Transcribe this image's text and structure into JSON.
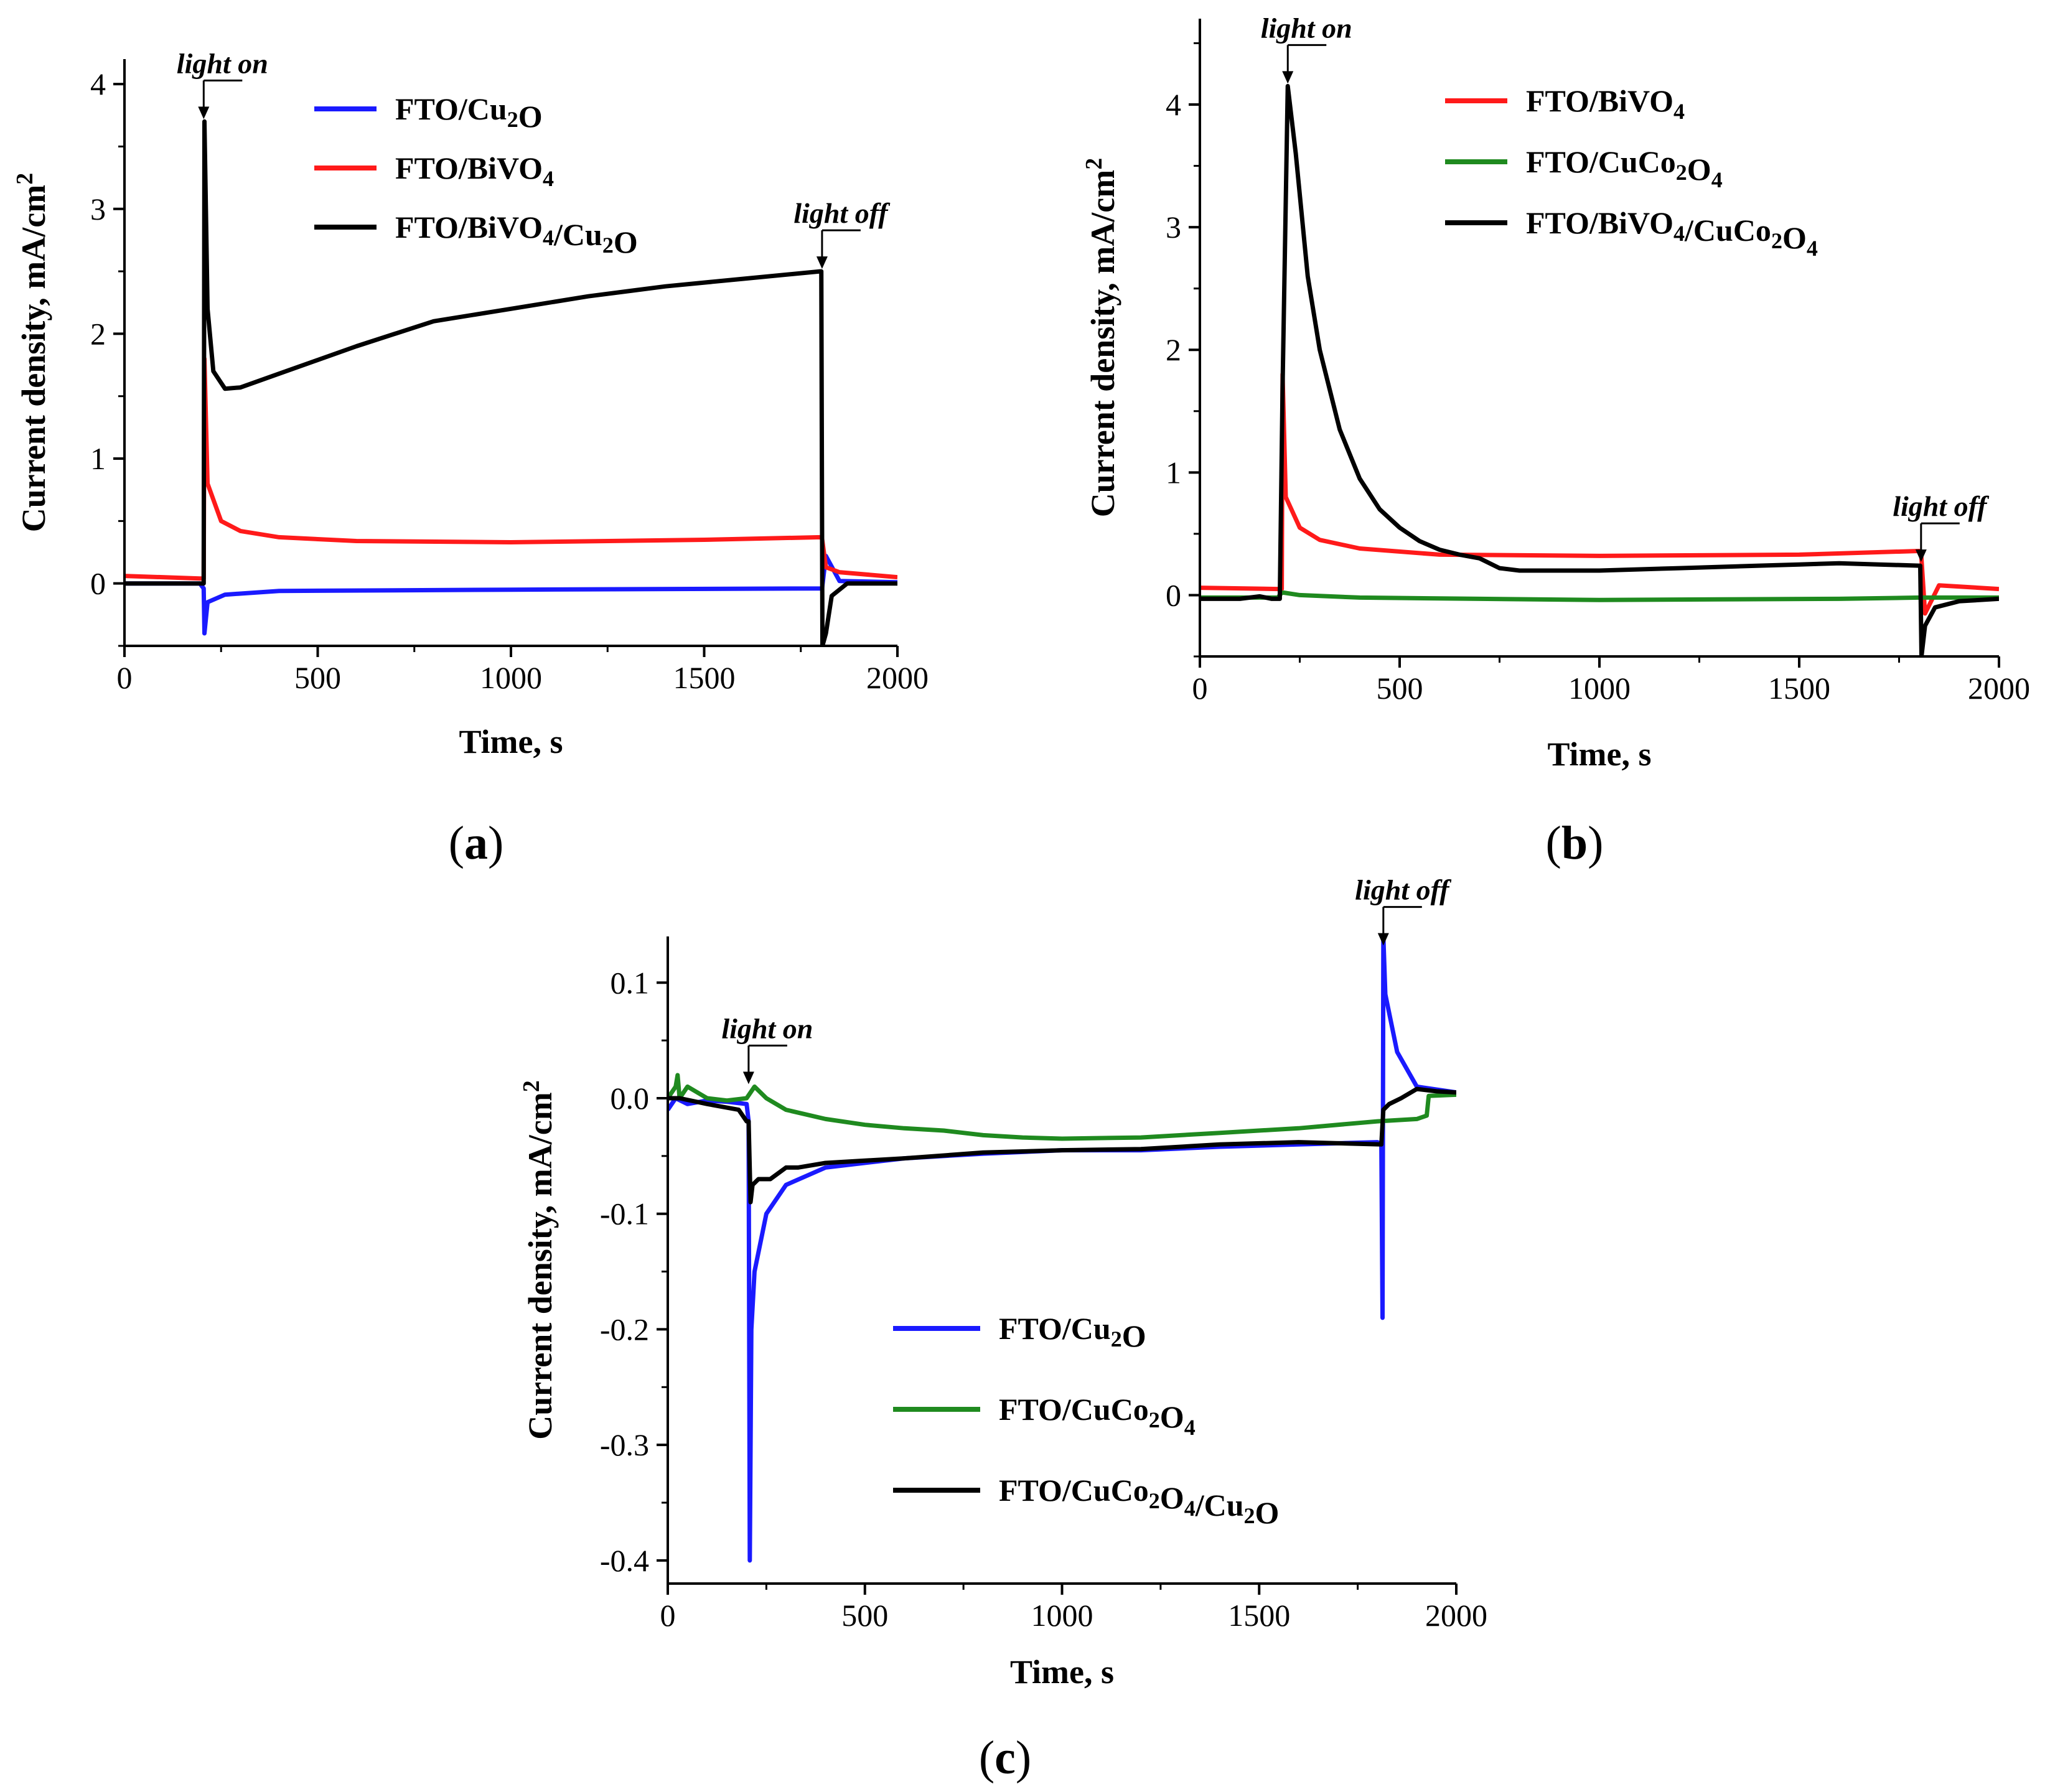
{
  "chart_data": [
    {
      "panel": "(a)",
      "panel_letter": "a",
      "type": "line",
      "xlabel": "Time, s",
      "ylabel": "Current density, mA/cm2",
      "ylabel_parts": {
        "base": "Current density, mA/cm",
        "sup": "2"
      },
      "xlim": [
        0,
        2000
      ],
      "ylim": [
        -0.5,
        4.2
      ],
      "x_ticks": [
        0,
        500,
        1000,
        1500,
        2000
      ],
      "x_tick_labels": [
        "0",
        "500",
        "1000",
        "1500",
        "2000"
      ],
      "y_ticks": [
        0,
        1,
        2,
        3,
        4
      ],
      "y_tick_labels": [
        "0",
        "1",
        "2",
        "3",
        "4"
      ],
      "legend_position": "top-right",
      "annotations": [
        {
          "text": "light on",
          "x": 205,
          "y": 3.7
        },
        {
          "text": "light off",
          "x": 1805,
          "y": 2.5
        }
      ],
      "series": [
        {
          "name": "FTO/Cu2O",
          "label_parts": [
            [
              "FTO/Cu",
              "n"
            ],
            [
              "2",
              "sub"
            ],
            [
              "O",
              "n"
            ]
          ],
          "color": "#1a1aff",
          "x": [
            0,
            195,
            205,
            207,
            215,
            260,
            400,
            1000,
            1800,
            1805,
            1815,
            1850,
            2000
          ],
          "y": [
            0.0,
            0.0,
            -0.04,
            -0.4,
            -0.15,
            -0.09,
            -0.06,
            -0.05,
            -0.04,
            -0.04,
            0.22,
            0.02,
            0.01
          ]
        },
        {
          "name": "FTO/BiVO4",
          "label_parts": [
            [
              "FTO/BiVO",
              "n"
            ],
            [
              "4",
              "sub"
            ]
          ],
          "color": "#ff1a1a",
          "x": [
            0,
            195,
            205,
            207,
            215,
            250,
            300,
            400,
            600,
            1000,
            1500,
            1800,
            1805,
            1815,
            1850,
            2000
          ],
          "y": [
            0.06,
            0.04,
            0.04,
            1.8,
            0.8,
            0.5,
            0.42,
            0.37,
            0.34,
            0.33,
            0.35,
            0.37,
            0.36,
            0.13,
            0.09,
            0.05
          ]
        },
        {
          "name": "FTO/BiVO4/Cu2O",
          "label_parts": [
            [
              "FTO/BiVO",
              "n"
            ],
            [
              "4",
              "sub"
            ],
            [
              "/Cu",
              "n"
            ],
            [
              "2",
              "sub"
            ],
            [
              "O",
              "n"
            ]
          ],
          "color": "#000000",
          "x": [
            0,
            195,
            205,
            207,
            215,
            230,
            260,
            300,
            400,
            600,
            800,
            1000,
            1200,
            1400,
            1600,
            1800,
            1803,
            1806,
            1815,
            1830,
            1870,
            2000
          ],
          "y": [
            0.0,
            0.0,
            0.0,
            3.7,
            2.2,
            1.7,
            1.56,
            1.57,
            1.68,
            1.9,
            2.1,
            2.2,
            2.3,
            2.38,
            2.44,
            2.5,
            2.5,
            -0.5,
            -0.4,
            -0.1,
            0.0,
            0.0
          ]
        }
      ]
    },
    {
      "panel": "(b)",
      "panel_letter": "b",
      "type": "line",
      "xlabel": "Time, s",
      "ylabel": "Current density, mA/cm2",
      "ylabel_parts": {
        "base": "Current density, mA/cm",
        "sup": "2"
      },
      "xlim": [
        0,
        2000
      ],
      "ylim": [
        -0.5,
        4.7
      ],
      "x_ticks": [
        0,
        500,
        1000,
        1500,
        2000
      ],
      "x_tick_labels": [
        "0",
        "500",
        "1000",
        "1500",
        "2000"
      ],
      "y_ticks": [
        0,
        1,
        2,
        3,
        4
      ],
      "y_tick_labels": [
        "0",
        "1",
        "2",
        "3",
        "4"
      ],
      "legend_position": "top-right",
      "annotations": [
        {
          "text": "light on",
          "x": 220,
          "y": 4.15
        },
        {
          "text": "light off",
          "x": 1805,
          "y": 0.25
        }
      ],
      "series": [
        {
          "name": "FTO/BiVO4",
          "label_parts": [
            [
              "FTO/BiVO",
              "n"
            ],
            [
              "4",
              "sub"
            ]
          ],
          "color": "#ff1a1a",
          "x": [
            0,
            195,
            205,
            207,
            215,
            250,
            300,
            400,
            600,
            1000,
            1500,
            1800,
            1805,
            1815,
            1850,
            2000
          ],
          "y": [
            0.06,
            0.05,
            0.05,
            1.8,
            0.8,
            0.55,
            0.45,
            0.38,
            0.33,
            0.32,
            0.33,
            0.36,
            0.35,
            -0.15,
            0.08,
            0.05
          ]
        },
        {
          "name": "FTO/CuCo2O4",
          "label_parts": [
            [
              "FTO/CuCo",
              "n"
            ],
            [
              "2",
              "sub"
            ],
            [
              "O",
              "n"
            ],
            [
              "4",
              "sub"
            ]
          ],
          "color": "#1f8a1f",
          "x": [
            0,
            195,
            205,
            210,
            250,
            400,
            700,
            1000,
            1300,
            1600,
            1800,
            1820,
            2000
          ],
          "y": [
            -0.02,
            -0.02,
            0.02,
            0.02,
            0.0,
            -0.02,
            -0.03,
            -0.04,
            -0.035,
            -0.03,
            -0.02,
            -0.02,
            -0.02
          ]
        },
        {
          "name": "FTO/BiVO4/CuCo2O4",
          "label_parts": [
            [
              "FTO/BiVO",
              "n"
            ],
            [
              "4",
              "sub"
            ],
            [
              "/CuCo",
              "n"
            ],
            [
              "2",
              "sub"
            ],
            [
              "O",
              "n"
            ],
            [
              "4",
              "sub"
            ]
          ],
          "color": "#000000",
          "x": [
            0,
            100,
            150,
            180,
            200,
            207,
            220,
            240,
            270,
            300,
            350,
            400,
            450,
            500,
            550,
            600,
            650,
            700,
            750,
            800,
            1000,
            1200,
            1400,
            1500,
            1600,
            1700,
            1800,
            1803,
            1806,
            1815,
            1840,
            1900,
            2000
          ],
          "y": [
            -0.03,
            -0.03,
            -0.01,
            -0.03,
            -0.03,
            1.7,
            4.15,
            3.6,
            2.6,
            2.0,
            1.35,
            0.95,
            0.7,
            0.55,
            0.44,
            0.37,
            0.33,
            0.3,
            0.22,
            0.2,
            0.2,
            0.22,
            0.24,
            0.25,
            0.26,
            0.25,
            0.24,
            0.24,
            -0.5,
            -0.25,
            -0.1,
            -0.05,
            -0.03
          ]
        }
      ]
    },
    {
      "panel": "(c)",
      "panel_letter": "c",
      "type": "line",
      "xlabel": "Time, s",
      "ylabel": "Current density, mA/cm2",
      "ylabel_parts": {
        "base": "Current density, mA/cm",
        "sup": "2"
      },
      "xlim": [
        0,
        2000
      ],
      "ylim": [
        -0.42,
        0.14
      ],
      "x_ticks": [
        0,
        500,
        1000,
        1500,
        2000
      ],
      "x_tick_labels": [
        "0",
        "500",
        "1000",
        "1500",
        "2000"
      ],
      "y_ticks": [
        0.1,
        0.0,
        -0.1,
        -0.2,
        -0.3,
        -0.4
      ],
      "y_tick_labels": [
        "0.1",
        "0.0",
        "-0.1",
        "-0.2",
        "-0.3",
        "-0.4"
      ],
      "legend_position": "bottom-center",
      "annotations": [
        {
          "text": "light on",
          "x": 205,
          "y": 0.01
        },
        {
          "text": "light off",
          "x": 1815,
          "y": 0.13
        }
      ],
      "series": [
        {
          "name": "FTO/Cu2O",
          "label_parts": [
            [
              "FTO/Cu",
              "n"
            ],
            [
              "2",
              "sub"
            ],
            [
              "O",
              "n"
            ]
          ],
          "color": "#1a1aff",
          "x": [
            0,
            20,
            50,
            100,
            150,
            200,
            205,
            208,
            212,
            220,
            250,
            300,
            400,
            600,
            800,
            1000,
            1200,
            1400,
            1600,
            1800,
            1810,
            1813,
            1815,
            1820,
            1850,
            1900,
            2000
          ],
          "y": [
            -0.01,
            0.0,
            -0.005,
            -0.002,
            -0.003,
            -0.005,
            -0.02,
            -0.4,
            -0.2,
            -0.15,
            -0.1,
            -0.075,
            -0.06,
            -0.052,
            -0.048,
            -0.045,
            -0.045,
            -0.042,
            -0.04,
            -0.038,
            -0.04,
            -0.19,
            0.14,
            0.09,
            0.04,
            0.01,
            0.005
          ]
        },
        {
          "name": "FTO/CuCo2O4",
          "label_parts": [
            [
              "FTO/CuCo",
              "n"
            ],
            [
              "2",
              "sub"
            ],
            [
              "O",
              "n"
            ],
            [
              "4",
              "sub"
            ]
          ],
          "color": "#1f8a1f",
          "x": [
            0,
            20,
            25,
            30,
            50,
            100,
            150,
            200,
            220,
            250,
            300,
            400,
            500,
            600,
            700,
            800,
            900,
            1000,
            1200,
            1400,
            1600,
            1800,
            1900,
            1925,
            1930,
            2000
          ],
          "y": [
            0.0,
            0.01,
            0.02,
            0.0,
            0.01,
            0.0,
            -0.002,
            0.0,
            0.01,
            0.0,
            -0.01,
            -0.018,
            -0.023,
            -0.026,
            -0.028,
            -0.032,
            -0.034,
            -0.035,
            -0.034,
            -0.03,
            -0.026,
            -0.02,
            -0.018,
            -0.015,
            0.002,
            0.003
          ]
        },
        {
          "name": "FTO/CuCo2O4/Cu2O",
          "label_parts": [
            [
              "FTO/CuCo",
              "n"
            ],
            [
              "2",
              "sub"
            ],
            [
              "O",
              "n"
            ],
            [
              "4",
              "sub"
            ],
            [
              "/Cu",
              "n"
            ],
            [
              "2",
              "sub"
            ],
            [
              "O",
              "n"
            ]
          ],
          "color": "#000000",
          "x": [
            0,
            30,
            100,
            180,
            200,
            205,
            210,
            215,
            230,
            260,
            300,
            330,
            400,
            600,
            800,
            1000,
            1200,
            1400,
            1600,
            1810,
            1815,
            1830,
            1860,
            1900,
            1950,
            2000
          ],
          "y": [
            0.0,
            0.0,
            -0.005,
            -0.01,
            -0.02,
            -0.02,
            -0.09,
            -0.075,
            -0.07,
            -0.07,
            -0.06,
            -0.06,
            -0.056,
            -0.052,
            -0.047,
            -0.045,
            -0.044,
            -0.04,
            -0.038,
            -0.04,
            -0.01,
            -0.005,
            0.0,
            0.008,
            0.006,
            0.005
          ]
        }
      ]
    }
  ]
}
